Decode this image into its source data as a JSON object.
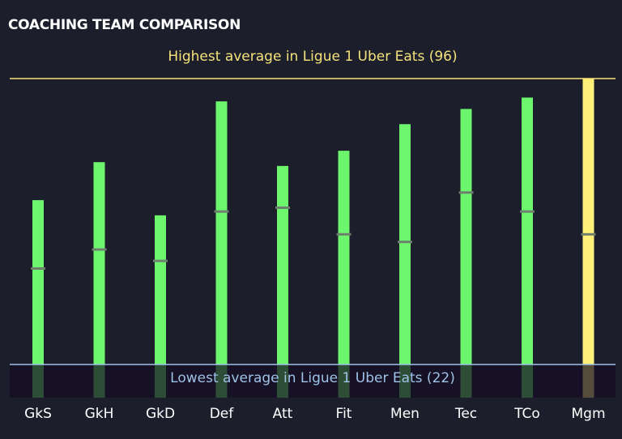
{
  "chart_data": {
    "type": "bar",
    "title": "COACHING TEAM COMPARISON",
    "categories": [
      "GkS",
      "GkH",
      "GkD",
      "Def",
      "Att",
      "Fit",
      "Men",
      "Tec",
      "TCo",
      "Mgm"
    ],
    "values": [
      64,
      74,
      60,
      90,
      73,
      77,
      84,
      88,
      91,
      96
    ],
    "markers": [
      46,
      51,
      48,
      61,
      62,
      55,
      53,
      66,
      61,
      55
    ],
    "highlight_category": "Mgm",
    "ylim": [
      12,
      96
    ],
    "reference_lines": {
      "high": {
        "label": "Highest average in Ligue 1 Uber Eats (96)",
        "value": 96
      },
      "low": {
        "label": "Lowest average in Ligue 1 Uber Eats (22)",
        "value": 22
      }
    },
    "colors": {
      "bar": "#6ef56e",
      "highlight_bar": "#fff07a",
      "marker": "#6d7f6d",
      "high_line": "#f5e27a",
      "low_line": "#9fc2e6",
      "low_band": "#150d23",
      "background": "#1c1f2b"
    }
  }
}
